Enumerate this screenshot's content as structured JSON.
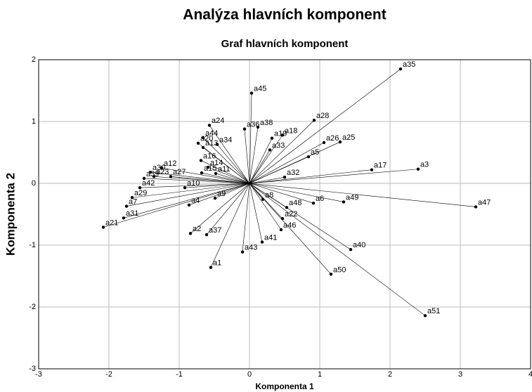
{
  "chart_data": {
    "type": "scatter",
    "title": "Analýza hlavních komponent",
    "subtitle": "Graf hlavních komponent",
    "xlabel": "Komponenta 1",
    "ylabel": "Komponenta 2",
    "xlim": [
      -3,
      4
    ],
    "ylim": [
      -3,
      2
    ],
    "xticks": [
      -3,
      -2,
      -1,
      0,
      1,
      2,
      3,
      4
    ],
    "yticks": [
      -3,
      -2,
      -1,
      0,
      1,
      2
    ],
    "grid": true,
    "color": "#000000",
    "labels": [
      "a1",
      "a2",
      "a3",
      "a4",
      "a5",
      "a6",
      "a7",
      "a8",
      "a9",
      "a10",
      "a11",
      "a12",
      "a13",
      "a14",
      "a15",
      "a16",
      "a17",
      "a18",
      "a19",
      "a20",
      "a21",
      "a22",
      "a23",
      "a24",
      "a25",
      "a26",
      "a27",
      "a28",
      "a29",
      "a30",
      "a31",
      "a32",
      "a33",
      "a34",
      "a35",
      "a36",
      "a37",
      "a38",
      "a39",
      "a40",
      "a41",
      "a42",
      "a43",
      "a44",
      "a45",
      "a46",
      "a47",
      "a48",
      "a49",
      "a50",
      "a51"
    ],
    "x": [
      -0.55,
      -0.84,
      2.4,
      -0.86,
      0.84,
      0.91,
      -1.75,
      0.19,
      -0.49,
      -0.92,
      -0.48,
      -1.25,
      -0.66,
      -0.59,
      -0.68,
      -0.69,
      1.74,
      0.47,
      0.32,
      -0.73,
      -2.08,
      0.47,
      -1.36,
      -0.57,
      1.29,
      1.06,
      -1.12,
      0.92,
      -1.67,
      -1.41,
      -1.79,
      0.5,
      0.29,
      -0.46,
      2.15,
      -0.07,
      -0.61,
      0.12,
      -1.5,
      1.44,
      0.18,
      -1.56,
      -0.1,
      -0.66,
      0.03,
      0.45,
      3.22,
      0.53,
      1.34,
      1.16,
      2.5
    ],
    "y": [
      -1.36,
      -0.81,
      0.23,
      -0.35,
      0.43,
      -0.32,
      -0.37,
      -0.26,
      -0.24,
      -0.07,
      0.16,
      0.25,
      0.58,
      0.26,
      0.17,
      0.37,
      0.22,
      0.78,
      0.73,
      0.65,
      -0.71,
      -0.57,
      0.11,
      0.94,
      0.67,
      0.66,
      0.11,
      1.02,
      -0.23,
      0.18,
      -0.56,
      0.1,
      0.54,
      0.63,
      1.85,
      0.88,
      -0.83,
      0.91,
      0.08,
      -1.07,
      -0.95,
      -0.07,
      -1.11,
      0.74,
      1.46,
      -0.75,
      -0.38,
      -0.39,
      -0.3,
      -1.47,
      -2.14
    ]
  }
}
